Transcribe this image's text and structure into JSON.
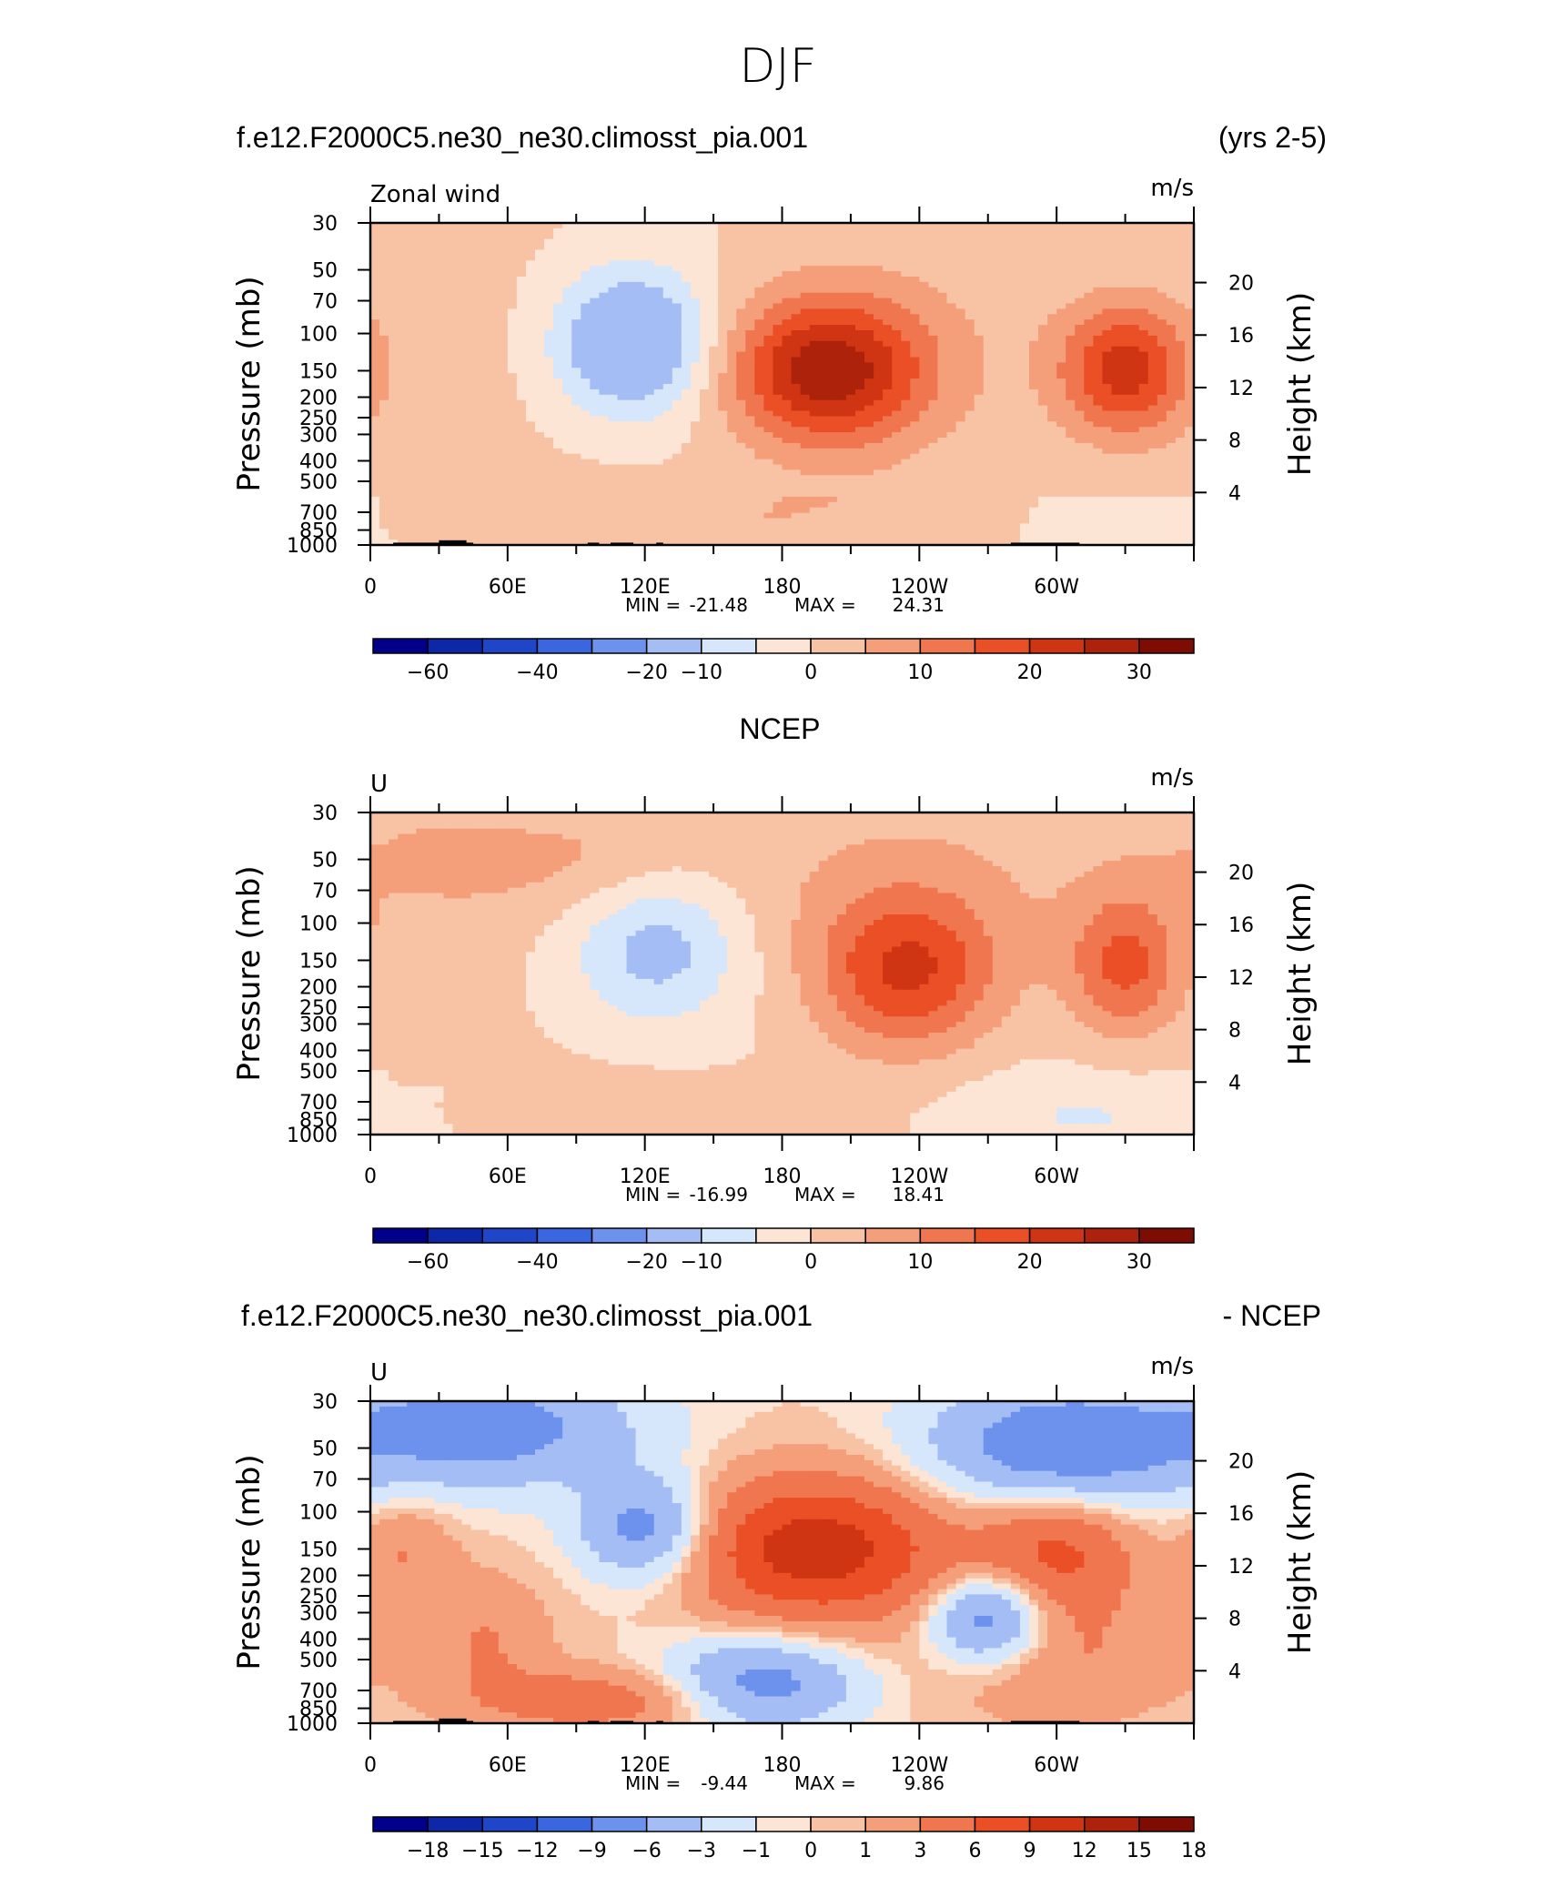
{
  "figure": {
    "title": "DJF"
  },
  "chart_data": [
    {
      "type": "heatmap",
      "subtype": "pressure-longitude filled contour",
      "header_left": "f.e12.F2000C5.ne30_ne30.climosst_pia.001",
      "header_right": "(yrs 2-5)",
      "label_left": "Zonal wind",
      "units": "m/s",
      "ylabel": "Pressure (mb)",
      "ylabel_right": "Height (km)",
      "pressure_ticks": [
        30,
        50,
        70,
        100,
        150,
        200,
        250,
        300,
        400,
        500,
        700,
        850,
        1000
      ],
      "height_ticks": [
        20,
        16,
        12,
        8,
        4
      ],
      "lon_ticks": [
        "0",
        "60E",
        "120E",
        "180",
        "120W",
        "60W"
      ],
      "min_label": "MIN =",
      "min_value": "-21.48",
      "max_label": "MAX =",
      "max_value": "24.31",
      "colorbar_levels": [
        -70,
        -60,
        -50,
        -40,
        -30,
        -20,
        -10,
        -5,
        0,
        5,
        10,
        15,
        20,
        25,
        30,
        35,
        40
      ],
      "colorbar_labels": [
        "-60",
        "-40",
        "-20",
        "-10",
        "0",
        "10",
        "20",
        "30"
      ],
      "features": [
        {
          "lon": 200,
          "p": 150,
          "value": 24.31,
          "kind": "westerly jet max"
        },
        {
          "lon": 330,
          "p": 150,
          "value": 20,
          "kind": "westerly jet"
        },
        {
          "lon": 115,
          "p": 110,
          "value": -21.48,
          "kind": "easterly min"
        }
      ]
    },
    {
      "type": "heatmap",
      "subtype": "pressure-longitude filled contour",
      "header_center": "NCEP",
      "label_left": "U",
      "units": "m/s",
      "ylabel": "Pressure (mb)",
      "ylabel_right": "Height (km)",
      "pressure_ticks": [
        30,
        50,
        70,
        100,
        150,
        200,
        250,
        300,
        400,
        500,
        700,
        850,
        1000
      ],
      "height_ticks": [
        20,
        16,
        12,
        8,
        4
      ],
      "lon_ticks": [
        "0",
        "60E",
        "120E",
        "180",
        "120W",
        "60W"
      ],
      "min_label": "MIN =",
      "min_value": "-16.99",
      "max_label": "MAX =",
      "max_value": "18.41",
      "colorbar_levels": [
        -70,
        -60,
        -50,
        -40,
        -30,
        -20,
        -10,
        -5,
        0,
        5,
        10,
        15,
        20,
        25,
        30,
        35,
        40
      ],
      "colorbar_labels": [
        "-60",
        "-40",
        "-20",
        "-10",
        "0",
        "10",
        "20",
        "30"
      ],
      "features": [
        {
          "lon": 235,
          "p": 170,
          "value": 18.41,
          "kind": "westerly jet max"
        },
        {
          "lon": 330,
          "p": 160,
          "value": 15,
          "kind": "westerly jet"
        },
        {
          "lon": 125,
          "p": 130,
          "value": -16.99,
          "kind": "easterly min"
        }
      ]
    },
    {
      "type": "heatmap",
      "subtype": "pressure-longitude filled contour (difference)",
      "header_left": "f.e12.F2000C5.ne30_ne30.climosst_pia.001",
      "header_right": "- NCEP",
      "label_left": "U",
      "units": "m/s",
      "ylabel": "Pressure (mb)",
      "ylabel_right": "Height (km)",
      "pressure_ticks": [
        30,
        50,
        70,
        100,
        150,
        200,
        250,
        300,
        400,
        500,
        700,
        850,
        1000
      ],
      "height_ticks": [
        20,
        16,
        12,
        8,
        4
      ],
      "lon_ticks": [
        "0",
        "60E",
        "120E",
        "180",
        "120W",
        "60W"
      ],
      "min_label": "MIN =",
      "min_value": "-9.44",
      "max_label": "MAX =",
      "max_value": "9.86",
      "colorbar_levels": [
        -21,
        -18,
        -15,
        -12,
        -9,
        -6,
        -3,
        -1,
        0,
        1,
        3,
        6,
        9,
        12,
        15,
        18,
        21
      ],
      "colorbar_labels": [
        "-18",
        "-15",
        "-12",
        "-9",
        "-6",
        "-3",
        "-1",
        "0",
        "1",
        "3",
        "6",
        "9",
        "12",
        "15",
        "18"
      ],
      "features": [
        {
          "lon": 195,
          "p": 150,
          "value": 9.86,
          "kind": "positive max"
        },
        {
          "lon": 270,
          "p": 320,
          "value": -9.44,
          "kind": "negative min"
        }
      ]
    }
  ],
  "colors": {
    "palette": [
      "#00008b",
      "#0c27a8",
      "#1f45c8",
      "#3a66e0",
      "#6d92ee",
      "#a5bdf5",
      "#d6e6fb",
      "#fde5d5",
      "#f8c2a5",
      "#f59e7a",
      "#f07650",
      "#ea4f26",
      "#cf3512",
      "#ad220a",
      "#7f0c02"
    ],
    "land": "#000000"
  }
}
